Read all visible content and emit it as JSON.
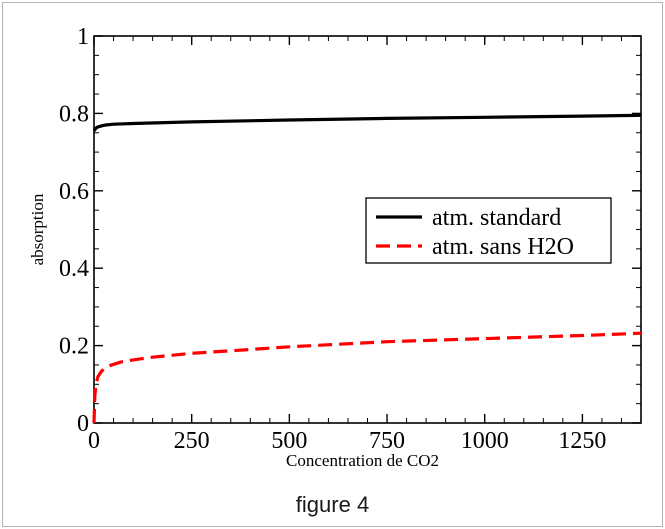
{
  "caption": "figure 4",
  "chart_data": {
    "type": "line",
    "xlabel": "Concentration de CO2",
    "ylabel": "absorption",
    "xlim": [
      0,
      1400
    ],
    "ylim": [
      0,
      1
    ],
    "x_ticks": [
      0,
      250,
      500,
      750,
      1000,
      1250
    ],
    "x_tick_labels": [
      "0",
      "250",
      "500",
      "750",
      "1000",
      "1250"
    ],
    "y_ticks": [
      0,
      0.2,
      0.4,
      0.6,
      0.8,
      1
    ],
    "y_tick_labels": [
      "0",
      "0.2",
      "0.4",
      "0.6",
      "0.8",
      "1"
    ],
    "grid": false,
    "legend_position": "center-right",
    "series": [
      {
        "name": "atm. standard",
        "color": "#000000",
        "style": "solid",
        "x": [
          0,
          5,
          10,
          20,
          30,
          50,
          100,
          250,
          500,
          750,
          1000,
          1250,
          1400
        ],
        "y": [
          0.755,
          0.762,
          0.765,
          0.768,
          0.77,
          0.772,
          0.774,
          0.778,
          0.783,
          0.787,
          0.79,
          0.793,
          0.795
        ]
      },
      {
        "name": "atm. sans H2O",
        "color": "#ff0000",
        "style": "dashed",
        "x": [
          0,
          2,
          5,
          10,
          20,
          40,
          70,
          100,
          150,
          250,
          400,
          500,
          750,
          1000,
          1250,
          1400
        ],
        "y": [
          0,
          0.07,
          0.1,
          0.12,
          0.135,
          0.148,
          0.158,
          0.163,
          0.17,
          0.18,
          0.19,
          0.197,
          0.21,
          0.218,
          0.226,
          0.232
        ]
      }
    ]
  }
}
